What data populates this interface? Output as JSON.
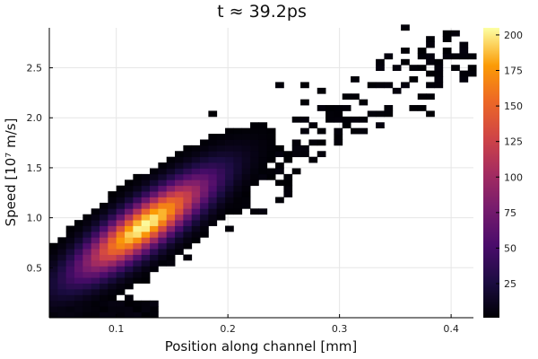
{
  "chart_data": {
    "type": "heatmap",
    "title": "t ≈ 39.2ps",
    "xlabel": "Position along channel [mm]",
    "ylabel": "Speed [10⁷ m/s]",
    "x_ticks": [
      0.1,
      0.2,
      0.3,
      0.4
    ],
    "x_tick_labels": [
      "0.1",
      "0.2",
      "0.3",
      "0.4"
    ],
    "y_ticks": [
      0.5,
      1.0,
      1.5,
      2.0,
      2.5
    ],
    "y_tick_labels": [
      "0.5",
      "1.0",
      "1.5",
      "2.0",
      "2.5"
    ],
    "xlim": [
      0.04,
      0.42
    ],
    "ylim": [
      0.0,
      2.9
    ],
    "colorbar": {
      "min": 1,
      "max": 205,
      "ticks": [
        25,
        50,
        75,
        100,
        125,
        150,
        175,
        200
      ],
      "tick_labels": [
        "25",
        "50",
        "75",
        "100",
        "125",
        "150",
        "175",
        "200"
      ],
      "colormap": "inferno"
    },
    "grid": true,
    "legend": "none",
    "peak": {
      "x": 0.125,
      "y": 0.92,
      "value": 205
    }
  }
}
